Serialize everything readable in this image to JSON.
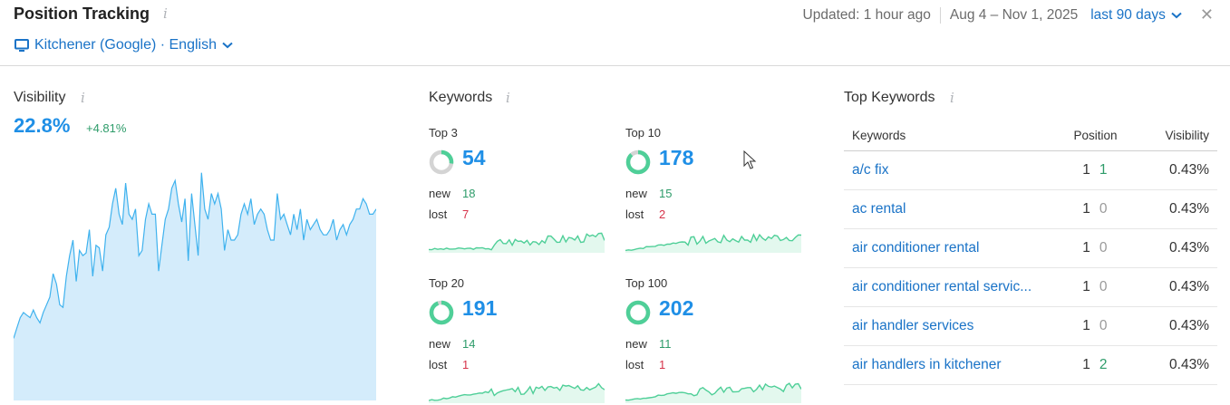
{
  "header": {
    "title": "Position Tracking",
    "info": "i",
    "location": "Kitchener (Google) · English",
    "updated": "Updated: 1 hour ago",
    "date_range": "Aug 4 – Nov 1, 2025",
    "range_select": "last 90 days"
  },
  "visibility": {
    "title": "Visibility",
    "info": "i",
    "value": "22.8%",
    "delta": "+4.81%",
    "trend": [
      12,
      14,
      16,
      17,
      16.5,
      16,
      17.5,
      16,
      15,
      17,
      18.5,
      20,
      24.5,
      22.5,
      18.5,
      18,
      24,
      28,
      31,
      23,
      29,
      28,
      28.5,
      33,
      24,
      30,
      29.5,
      25,
      32,
      33.5,
      38,
      41,
      36,
      34,
      42,
      36,
      35,
      37,
      28,
      29,
      35,
      38,
      36,
      36,
      25,
      30,
      35,
      37,
      41,
      42.5,
      38,
      34.5,
      39,
      27,
      40,
      34,
      28,
      44,
      37,
      35,
      40,
      38,
      40,
      37,
      29,
      33,
      31,
      31,
      32,
      36,
      38,
      36,
      39,
      34,
      36,
      37,
      36,
      33,
      31,
      31,
      40,
      35,
      36,
      34,
      32,
      36,
      33,
      37,
      31,
      35,
      33,
      34,
      35,
      33,
      32,
      32,
      33,
      35,
      31,
      33,
      34,
      32,
      34,
      35,
      37,
      37,
      39,
      38,
      36,
      36,
      37
    ]
  },
  "keywords": {
    "title": "Keywords",
    "info": "i",
    "new_label": "new",
    "lost_label": "lost",
    "cards": [
      {
        "label": "Top 3",
        "value": "54",
        "new": "18",
        "lost": "7",
        "ratio": 0.27
      },
      {
        "label": "Top 10",
        "value": "178",
        "new": "15",
        "lost": "2",
        "ratio": 0.88
      },
      {
        "label": "Top 20",
        "value": "191",
        "new": "14",
        "lost": "1",
        "ratio": 0.94
      },
      {
        "label": "Top 100",
        "value": "202",
        "new": "11",
        "lost": "1",
        "ratio": 1.0
      }
    ],
    "colors": {
      "accent": "#1f8fe6",
      "ring": "#4fcf98",
      "ring_bg": "#d4d4d4",
      "new": "#2e9c6a",
      "lost": "#d6334a"
    }
  },
  "top_keywords": {
    "title": "Top Keywords",
    "info": "i",
    "columns": [
      "Keywords",
      "Position",
      "Visibility"
    ],
    "rows": [
      {
        "keyword": "a/c fix",
        "position": "1",
        "change": "1",
        "visibility": "0.43%"
      },
      {
        "keyword": "ac rental",
        "position": "1",
        "change": "0",
        "visibility": "0.43%"
      },
      {
        "keyword": "air conditioner rental",
        "position": "1",
        "change": "0",
        "visibility": "0.43%"
      },
      {
        "keyword": "air conditioner rental servic...",
        "position": "1",
        "change": "0",
        "visibility": "0.43%"
      },
      {
        "keyword": "air handler services",
        "position": "1",
        "change": "0",
        "visibility": "0.43%"
      },
      {
        "keyword": "air handlers in kitchener",
        "position": "1",
        "change": "2",
        "visibility": "0.43%"
      }
    ]
  }
}
